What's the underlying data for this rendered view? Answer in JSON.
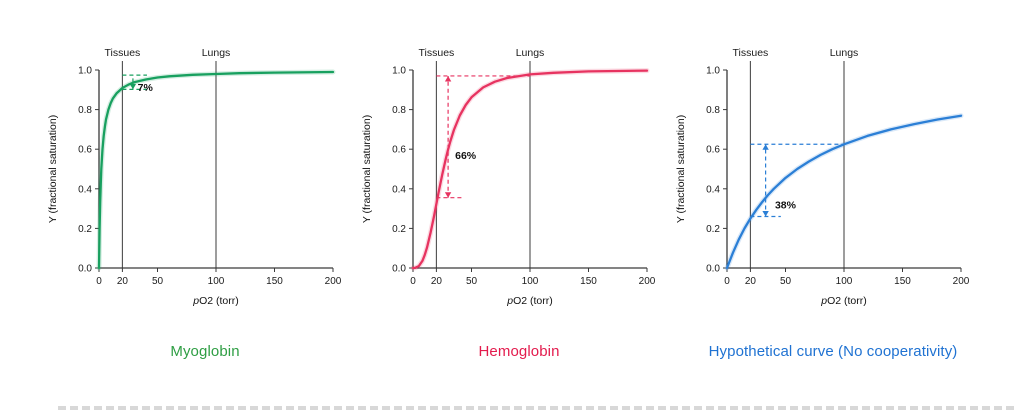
{
  "page": {
    "background": "#ffffff"
  },
  "chart_data": [
    {
      "id": "myoglobin",
      "type": "line",
      "title": "Myoglobin",
      "color": "#18a05f",
      "title_color": "#2f9e44",
      "xlabel": "pO2 (torr)",
      "ylabel": "Y (fractional saturation)",
      "xlim": [
        0,
        200
      ],
      "ylim": [
        0,
        1
      ],
      "x_ticks": [
        0,
        20,
        50,
        100,
        150,
        200
      ],
      "y_ticks": [
        0,
        0.2,
        0.4,
        0.6,
        0.8,
        1
      ],
      "ref_lines": [
        {
          "x": 20,
          "label": "Tissues"
        },
        {
          "x": 100,
          "label": "Lungs"
        }
      ],
      "curve": {
        "x": [
          0,
          0.5,
          1,
          1.5,
          2,
          3,
          4,
          5,
          6,
          8,
          10,
          12,
          15,
          20,
          25,
          30,
          40,
          50,
          60,
          80,
          100,
          120,
          150,
          200
        ],
        "y": [
          0,
          0.2,
          0.333,
          0.429,
          0.5,
          0.6,
          0.667,
          0.714,
          0.75,
          0.8,
          0.833,
          0.857,
          0.882,
          0.909,
          0.926,
          0.938,
          0.952,
          0.962,
          0.968,
          0.976,
          0.98,
          0.984,
          0.987,
          0.99
        ]
      },
      "annotation": {
        "label": "7%",
        "label_pos": [
          33,
          0.895
        ],
        "arrow": {
          "x": 29,
          "y1": 0.902,
          "y2": 0.974,
          "heads": "down"
        },
        "hlines": [
          {
            "y": 0.974,
            "x1": 20,
            "x2": 41
          },
          {
            "y": 0.902,
            "x1": 20,
            "x2": 41
          }
        ]
      }
    },
    {
      "id": "hemoglobin",
      "type": "line",
      "title": "Hemoglobin",
      "color": "#e73360",
      "title_color": "#e31b4d",
      "xlabel": "pO2 (torr)",
      "ylabel": "Y (fractional saturation)",
      "xlim": [
        0,
        200
      ],
      "ylim": [
        0,
        1
      ],
      "x_ticks": [
        0,
        20,
        50,
        100,
        150,
        200
      ],
      "y_ticks": [
        0,
        0.2,
        0.4,
        0.6,
        0.8,
        1
      ],
      "ref_lines": [
        {
          "x": 20,
          "label": "Tissues"
        },
        {
          "x": 100,
          "label": "Lungs"
        }
      ],
      "curve": {
        "x": [
          0,
          2,
          5,
          8,
          10,
          12,
          15,
          18,
          20,
          22,
          25,
          28,
          30,
          32,
          35,
          40,
          45,
          50,
          60,
          70,
          80,
          100,
          120,
          150,
          200
        ],
        "y": [
          0,
          0.001,
          0.01,
          0.036,
          0.065,
          0.103,
          0.177,
          0.263,
          0.324,
          0.385,
          0.473,
          0.552,
          0.599,
          0.641,
          0.697,
          0.77,
          0.823,
          0.862,
          0.912,
          0.941,
          0.959,
          0.978,
          0.986,
          0.993,
          0.997
        ]
      },
      "annotation": {
        "label": "66%",
        "label_pos": [
          36,
          0.55
        ],
        "arrow": {
          "x": 30,
          "y1": 0.355,
          "y2": 0.97,
          "heads": "both"
        },
        "hlines": [
          {
            "y": 0.97,
            "x1": 20,
            "x2": 100
          },
          {
            "y": 0.355,
            "x1": 20,
            "x2": 42
          }
        ]
      }
    },
    {
      "id": "hypothetical",
      "type": "line",
      "title": "Hypothetical curve (No cooperativity)",
      "color": "#2b7fd6",
      "title_color": "#1f72d2",
      "xlabel": "pO2 (torr)",
      "ylabel": "Y (fractional saturation)",
      "xlim": [
        0,
        200
      ],
      "ylim": [
        0,
        1
      ],
      "x_ticks": [
        0,
        20,
        50,
        100,
        150,
        200
      ],
      "y_ticks": [
        0,
        0.2,
        0.4,
        0.6,
        0.8,
        1
      ],
      "ref_lines": [
        {
          "x": 20,
          "label": "Tissues"
        },
        {
          "x": 100,
          "label": "Lungs"
        }
      ],
      "curve": {
        "x": [
          0,
          5,
          10,
          15,
          20,
          25,
          30,
          35,
          40,
          50,
          60,
          70,
          80,
          90,
          100,
          120,
          140,
          160,
          180,
          200
        ],
        "y": [
          0,
          0.077,
          0.143,
          0.2,
          0.25,
          0.294,
          0.333,
          0.368,
          0.4,
          0.455,
          0.5,
          0.538,
          0.571,
          0.6,
          0.625,
          0.667,
          0.7,
          0.727,
          0.75,
          0.769
        ]
      },
      "annotation": {
        "label": "38%",
        "label_pos": [
          41,
          0.3
        ],
        "arrow": {
          "x": 33,
          "y1": 0.26,
          "y2": 0.625,
          "heads": "both"
        },
        "hlines": [
          {
            "y": 0.625,
            "x1": 20,
            "x2": 100
          },
          {
            "y": 0.26,
            "x1": 20,
            "x2": 46
          }
        ]
      }
    }
  ]
}
